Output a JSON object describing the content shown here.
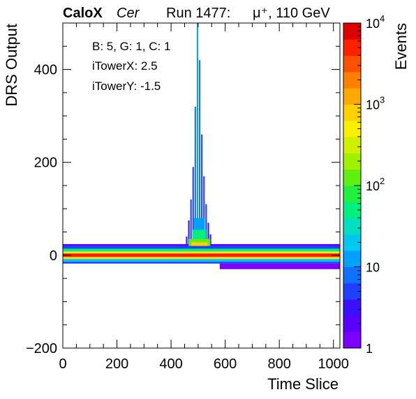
{
  "header": {
    "brand": "CaloX",
    "channel": "Cer",
    "run": "Run 1477:",
    "beam": "μ⁺, 110 GeV"
  },
  "info": {
    "line1": "B: 5, G: 1, C: 1",
    "line2": "iTowerX: 2.5",
    "line3": "iTowerY: -1.5"
  },
  "chart_data": {
    "type": "heatmap",
    "title": "",
    "xlabel": "Time Slice",
    "ylabel": "DRS Output",
    "zlabel": "Events",
    "xlim": [
      0,
      1024
    ],
    "ylim": [
      -200,
      500
    ],
    "zlim": [
      1,
      10000
    ],
    "zscale": "log",
    "x_ticks": [
      "0",
      "200",
      "400",
      "600",
      "800",
      "1000"
    ],
    "y_ticks": [
      "−200",
      "0",
      "200",
      "400"
    ],
    "z_ticks": [
      {
        "base": "1",
        "exp": ""
      },
      {
        "base": "10",
        "exp": ""
      },
      {
        "base": "10",
        "exp": "2"
      },
      {
        "base": "10",
        "exp": "3"
      },
      {
        "base": "10",
        "exp": "4"
      }
    ],
    "palette": [
      "#7b00ff",
      "#5a00ff",
      "#3a10ff",
      "#2040ff",
      "#1070ff",
      "#00a0ff",
      "#00c8f0",
      "#00e0c0",
      "#00f080",
      "#20f040",
      "#60f010",
      "#a0f000",
      "#d0f000",
      "#f8f000",
      "#ffd000",
      "#ffa800",
      "#ff8000",
      "#ff5000",
      "#ff2000",
      "#e00000"
    ],
    "bands": [
      {
        "x0": 0,
        "x1": 1024,
        "y0": -4,
        "y1": 4,
        "z": 6000
      },
      {
        "x0": 0,
        "x1": 1024,
        "y0": 4,
        "y1": 8,
        "z": 600
      },
      {
        "x0": 0,
        "x1": 1024,
        "y0": -8,
        "y1": -4,
        "z": 400
      },
      {
        "x0": 0,
        "x1": 1024,
        "y0": 8,
        "y1": 14,
        "z": 40
      },
      {
        "x0": 0,
        "x1": 1024,
        "y0": -14,
        "y1": -8,
        "z": 25
      },
      {
        "x0": 0,
        "x1": 1024,
        "y0": 14,
        "y1": 20,
        "z": 6
      },
      {
        "x0": 0,
        "x1": 1024,
        "y0": -18,
        "y1": -14,
        "z": 4
      },
      {
        "x0": 0,
        "x1": 1024,
        "y0": 20,
        "y1": 24,
        "z": 2
      },
      {
        "x0": 580,
        "x1": 1024,
        "y0": -30,
        "y1": -18,
        "z": 1
      }
    ],
    "pulse": [
      {
        "x": 455,
        "w": 8,
        "ymax": 40,
        "z": 3
      },
      {
        "x": 463,
        "w": 8,
        "ymax": 75,
        "z": 3
      },
      {
        "x": 471,
        "w": 8,
        "ymax": 120,
        "z": 4
      },
      {
        "x": 479,
        "w": 8,
        "ymax": 190,
        "z": 6
      },
      {
        "x": 487,
        "w": 8,
        "ymax": 320,
        "z": 8
      },
      {
        "x": 495,
        "w": 8,
        "ymax": 500,
        "z": 10
      },
      {
        "x": 503,
        "w": 8,
        "ymax": 420,
        "z": 8
      },
      {
        "x": 511,
        "w": 8,
        "ymax": 260,
        "z": 6
      },
      {
        "x": 519,
        "w": 8,
        "ymax": 170,
        "z": 5
      },
      {
        "x": 527,
        "w": 8,
        "ymax": 110,
        "z": 4
      },
      {
        "x": 535,
        "w": 8,
        "ymax": 70,
        "z": 3
      },
      {
        "x": 543,
        "w": 8,
        "ymax": 45,
        "z": 2
      }
    ],
    "pulse_core": [
      {
        "x0": 465,
        "x1": 545,
        "y0": 20,
        "y1": 35,
        "z": 150
      },
      {
        "x0": 475,
        "x1": 535,
        "y0": 20,
        "y1": 28,
        "z": 800
      },
      {
        "x0": 480,
        "x1": 530,
        "y0": 35,
        "y1": 55,
        "z": 40
      },
      {
        "x0": 485,
        "x1": 525,
        "y0": 55,
        "y1": 80,
        "z": 15
      }
    ]
  }
}
